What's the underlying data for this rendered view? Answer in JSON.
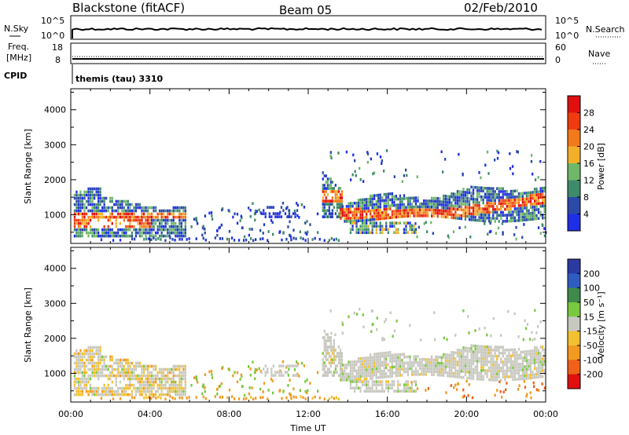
{
  "header": {
    "station": "Blackstone (fitACF)",
    "beam": "Beam 05",
    "date": "02/Feb/2010"
  },
  "strips": {
    "nsky_label": "N.Sky",
    "nsky_ticks": [
      "10^5",
      "10^0"
    ],
    "nsearch_label": "N.Search",
    "nsearch_ticks": [
      "10^5",
      "10^0"
    ],
    "freq_label_1": "Freq.",
    "freq_label_2": "[MHz]",
    "freq_ticks": [
      "18",
      "8"
    ],
    "nave_label": "Nave",
    "nave_ticks": [
      "60",
      "0"
    ],
    "cpid_label": "CPID",
    "cpid_text": "themis (tau) 3310"
  },
  "colors": {
    "power": [
      "#1f2fe6",
      "#2b4aa8",
      "#3f8a6a",
      "#6fb86a",
      "#f2b02a",
      "#f27a1a",
      "#f03a10",
      "#e01010"
    ],
    "velocity": [
      "#2a3aa0",
      "#2f5cc0",
      "#3f8a4a",
      "#7ac840",
      "#c8c8c0",
      "#f2c030",
      "#f29a20",
      "#f06018",
      "#e01010"
    ]
  },
  "chart_data": [
    {
      "type": "heatmap",
      "title": "",
      "xlabel": "",
      "ylabel": "Slant Range [km]",
      "xlim": [
        "00:00",
        "00:00"
      ],
      "ylim": [
        180,
        4600
      ],
      "yticks": [
        "1000",
        "2000",
        "3000",
        "4000"
      ],
      "colorbar": {
        "label": "Power [dB]",
        "ticks": [
          "4",
          "8",
          "12",
          "16",
          "20",
          "24",
          "28"
        ],
        "range": [
          0,
          32
        ]
      },
      "regions": [
        {
          "t0": 0.1,
          "t1": 5.8,
          "r0": 300,
          "r1": 1650,
          "core": [
            600,
            1050
          ],
          "level": "high"
        },
        {
          "t0": 13.1,
          "t1": 23.9,
          "r0": 800,
          "r1": 1900,
          "core": [
            900,
            1300
          ],
          "level": "high"
        },
        {
          "t0": 12.8,
          "t1": 13.6,
          "r0": 1400,
          "r1": 2250,
          "core": [],
          "level": "mid"
        }
      ]
    },
    {
      "type": "heatmap",
      "title": "",
      "xlabel": "Time UT",
      "ylabel": "Slant Range [km]",
      "xticks": [
        "00:00",
        "04:00",
        "08:00",
        "12:00",
        "16:00",
        "20:00",
        "00:00"
      ],
      "ylim": [
        180,
        4600
      ],
      "yticks": [
        "1000",
        "2000",
        "3000",
        "4000"
      ],
      "colorbar": {
        "label": "Velocity [m s⁻¹]",
        "ticks": [
          "200",
          "100",
          "50",
          "15",
          "-15",
          "-50",
          "-100",
          "-200"
        ],
        "range": [
          -250,
          250
        ]
      }
    }
  ]
}
